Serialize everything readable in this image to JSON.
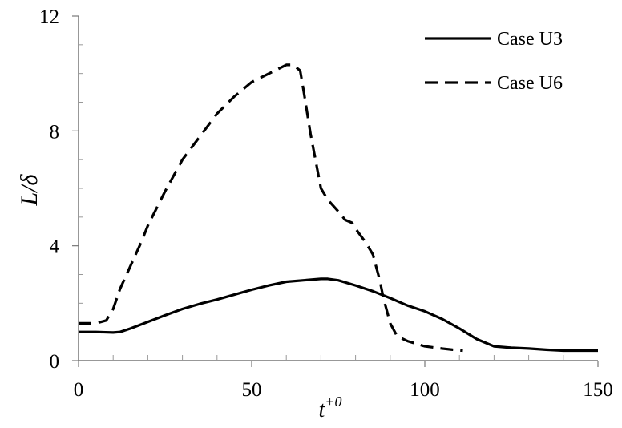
{
  "chart_data": {
    "type": "line",
    "xlabel": "t",
    "xlabel_sup": "+0",
    "ylabel": "L/δ",
    "xlim": [
      0,
      150
    ],
    "ylim": [
      0,
      12
    ],
    "xticks": [
      0,
      50,
      100,
      150
    ],
    "yticks": [
      0,
      4,
      8,
      12
    ],
    "x_minor_ticks": [
      10,
      20,
      30,
      40,
      60,
      70,
      80,
      90,
      110,
      120,
      130,
      140
    ],
    "y_minor_ticks": [
      1,
      2,
      3,
      5,
      6,
      7,
      9,
      10,
      11
    ],
    "grid": false,
    "legend_position": "top-right",
    "series": [
      {
        "name": "Case U3",
        "style": "solid",
        "x": [
          0,
          5,
          10,
          12,
          15,
          20,
          25,
          30,
          35,
          40,
          45,
          50,
          55,
          60,
          65,
          70,
          72,
          75,
          80,
          85,
          90,
          95,
          100,
          105,
          110,
          115,
          120,
          125,
          130,
          135,
          140,
          145,
          150
        ],
        "y": [
          1.0,
          1.0,
          0.98,
          1.0,
          1.12,
          1.35,
          1.58,
          1.8,
          1.98,
          2.13,
          2.3,
          2.47,
          2.62,
          2.75,
          2.8,
          2.85,
          2.85,
          2.8,
          2.62,
          2.42,
          2.18,
          1.92,
          1.72,
          1.45,
          1.12,
          0.75,
          0.5,
          0.45,
          0.42,
          0.38,
          0.35,
          0.35,
          0.35
        ]
      },
      {
        "name": "Case U6",
        "style": "dashed",
        "x": [
          0,
          5,
          8,
          10,
          12,
          15,
          18,
          20,
          25,
          30,
          35,
          40,
          45,
          50,
          55,
          60,
          62,
          64,
          65,
          67,
          70,
          72,
          75,
          77,
          79,
          80,
          83,
          85,
          87,
          88,
          90,
          92,
          95,
          100,
          105,
          108,
          111
        ],
        "y": [
          1.3,
          1.3,
          1.4,
          1.8,
          2.5,
          3.3,
          4.1,
          4.7,
          5.9,
          7.0,
          7.8,
          8.6,
          9.2,
          9.7,
          10.0,
          10.3,
          10.3,
          10.1,
          9.4,
          7.9,
          6.0,
          5.6,
          5.2,
          4.9,
          4.8,
          4.6,
          4.1,
          3.7,
          2.8,
          2.2,
          1.3,
          0.85,
          0.68,
          0.5,
          0.42,
          0.38,
          0.35
        ]
      }
    ]
  }
}
